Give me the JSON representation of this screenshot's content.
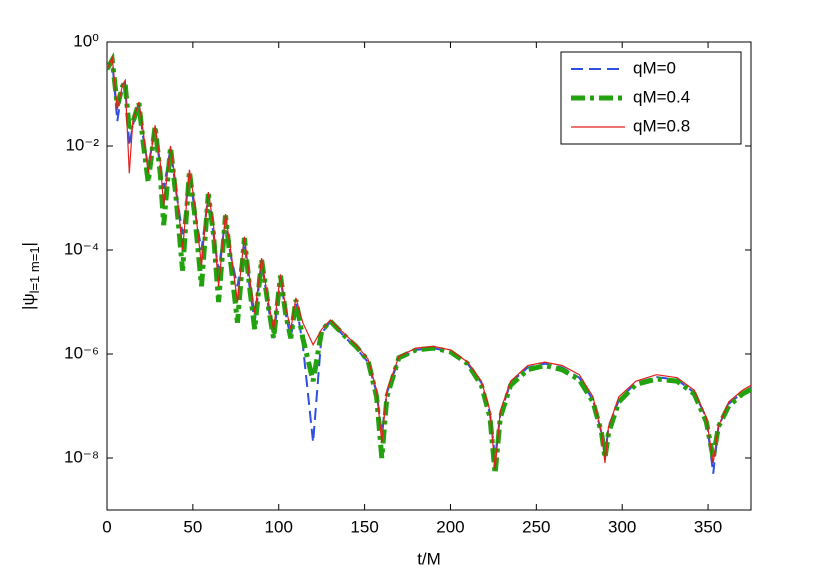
{
  "chart_data": {
    "type": "line",
    "xlabel": "t/M",
    "ylabel": "|ψ",
    "ylabel_sub": "l=1 m=1",
    "ylabel_end": "|",
    "log_y": true,
    "legend": "top-right",
    "xlim": [
      0,
      375
    ],
    "xticks": [
      0,
      50,
      100,
      150,
      200,
      250,
      300,
      350
    ],
    "ylim": [
      1e-09,
      1
    ],
    "yticks": [
      {
        "value": 1e-08,
        "label": "10⁻⁸"
      },
      {
        "value": 1e-06,
        "label": "10⁻⁶"
      },
      {
        "value": 0.0001,
        "label": "10⁻⁴"
      },
      {
        "value": 0.01,
        "label": "10⁻²"
      },
      {
        "value": 1,
        "label": "10⁰"
      }
    ],
    "x": [
      0,
      3,
      6,
      9,
      10.5,
      13,
      15,
      18.6,
      21,
      24,
      28,
      31,
      33,
      37,
      40,
      44,
      48,
      51,
      55,
      59,
      62,
      65,
      69,
      72,
      76,
      80,
      83,
      86,
      90,
      94,
      97,
      101,
      104,
      107,
      110,
      114,
      120,
      125,
      130,
      138,
      145,
      152,
      157,
      160,
      163,
      170,
      180,
      190,
      200,
      210,
      218,
      223,
      226,
      229,
      235,
      245,
      255,
      265,
      275,
      283,
      288,
      290,
      292,
      298,
      308,
      320,
      332,
      342,
      349,
      353,
      356,
      362,
      370,
      375
    ],
    "series": [
      {
        "name": "qM=0",
        "color": "#2f4fe0",
        "style": "dashed",
        "width": 2,
        "values": [
          0.3,
          0.45,
          0.03,
          0.14,
          0.17,
          0.01,
          0.025,
          0.065,
          0.015,
          0.004,
          0.022,
          0.004,
          0.0015,
          0.009,
          0.0015,
          0.0002,
          0.003,
          0.0006,
          0.0001,
          0.0011,
          0.0002,
          4e-05,
          0.0004,
          8e-05,
          2e-05,
          0.00015,
          2e-05,
          4e-06,
          6e-05,
          8e-06,
          2e-06,
          3e-05,
          6e-06,
          2e-06,
          1e-05,
          1.5e-06,
          2e-08,
          2.5e-06,
          4.2e-06,
          2.2e-06,
          1.3e-06,
          7e-07,
          1.8e-07,
          3e-08,
          1.8e-07,
          8e-07,
          1.2e-06,
          1.3e-06,
          1.1e-06,
          6.5e-07,
          2.8e-07,
          7e-08,
          1e-08,
          7e-08,
          2.8e-07,
          5.5e-07,
          6.5e-07,
          5.5e-07,
          3.5e-07,
          1.3e-07,
          3e-08,
          1e-08,
          4e-08,
          1.3e-07,
          2.8e-07,
          3.6e-07,
          3.2e-07,
          1.8e-07,
          6e-08,
          5e-09,
          4e-08,
          1.1e-07,
          1.8e-07,
          2.2e-07
        ]
      },
      {
        "name": "qM=0.4",
        "color": "#22a20e",
        "style": "dashdot",
        "width": 5,
        "values": [
          0.3,
          0.45,
          0.06,
          0.14,
          0.17,
          0.02,
          0.028,
          0.068,
          0.012,
          0.002,
          0.024,
          0.003,
          0.0003,
          0.0095,
          0.0012,
          4e-05,
          0.0033,
          0.0005,
          2e-05,
          0.0012,
          0.0002,
          1e-05,
          0.00046,
          6e-05,
          4e-06,
          0.00017,
          2e-05,
          3e-06,
          6.5e-05,
          8e-06,
          2e-06,
          3.2e-05,
          6e-06,
          2e-06,
          1.1e-05,
          2e-06,
          3e-07,
          2.8e-06,
          4.3e-06,
          2.3e-06,
          1.4e-06,
          7.5e-07,
          1.5e-07,
          1e-08,
          1.5e-07,
          8.5e-07,
          1.2e-06,
          1.3e-06,
          1.1e-06,
          6.5e-07,
          2.5e-07,
          6e-08,
          5e-09,
          6e-08,
          2.5e-07,
          5e-07,
          6e-07,
          5e-07,
          3.2e-07,
          1.2e-07,
          3e-08,
          1e-08,
          3e-08,
          1.2e-07,
          2.6e-07,
          3.3e-07,
          3e-07,
          1.7e-07,
          5e-08,
          1e-08,
          4e-08,
          1e-07,
          1.7e-07,
          2.1e-07
        ]
      },
      {
        "name": "qM=0.8",
        "color": "#e0201c",
        "style": "solid",
        "width": 1.2,
        "values": [
          0.3,
          0.5,
          0.05,
          0.15,
          0.18,
          0.003,
          0.03,
          0.07,
          0.02,
          0.003,
          0.025,
          0.005,
          0.0007,
          0.01,
          0.002,
          0.0001,
          0.0035,
          0.0008,
          5e-05,
          0.0013,
          0.0003,
          2e-05,
          0.00049,
          0.0001,
          1e-05,
          0.00018,
          3e-05,
          6e-06,
          7e-05,
          1e-05,
          3e-06,
          3.4e-05,
          8e-06,
          3e-06,
          1.2e-05,
          4e-06,
          1.5e-06,
          3e-06,
          4.5e-06,
          2.5e-06,
          1.5e-06,
          8e-07,
          2e-07,
          2e-08,
          2e-07,
          9e-07,
          1.3e-06,
          1.4e-06,
          1.2e-06,
          7e-07,
          3e-07,
          8e-08,
          6e-09,
          8e-08,
          3e-07,
          6e-07,
          7e-07,
          6e-07,
          4e-07,
          1.5e-07,
          3e-08,
          8e-09,
          4e-08,
          1.5e-07,
          3e-07,
          4e-07,
          3.5e-07,
          2e-07,
          6e-08,
          8e-09,
          4e-08,
          1.2e-07,
          2e-07,
          2.5e-07
        ]
      }
    ]
  }
}
